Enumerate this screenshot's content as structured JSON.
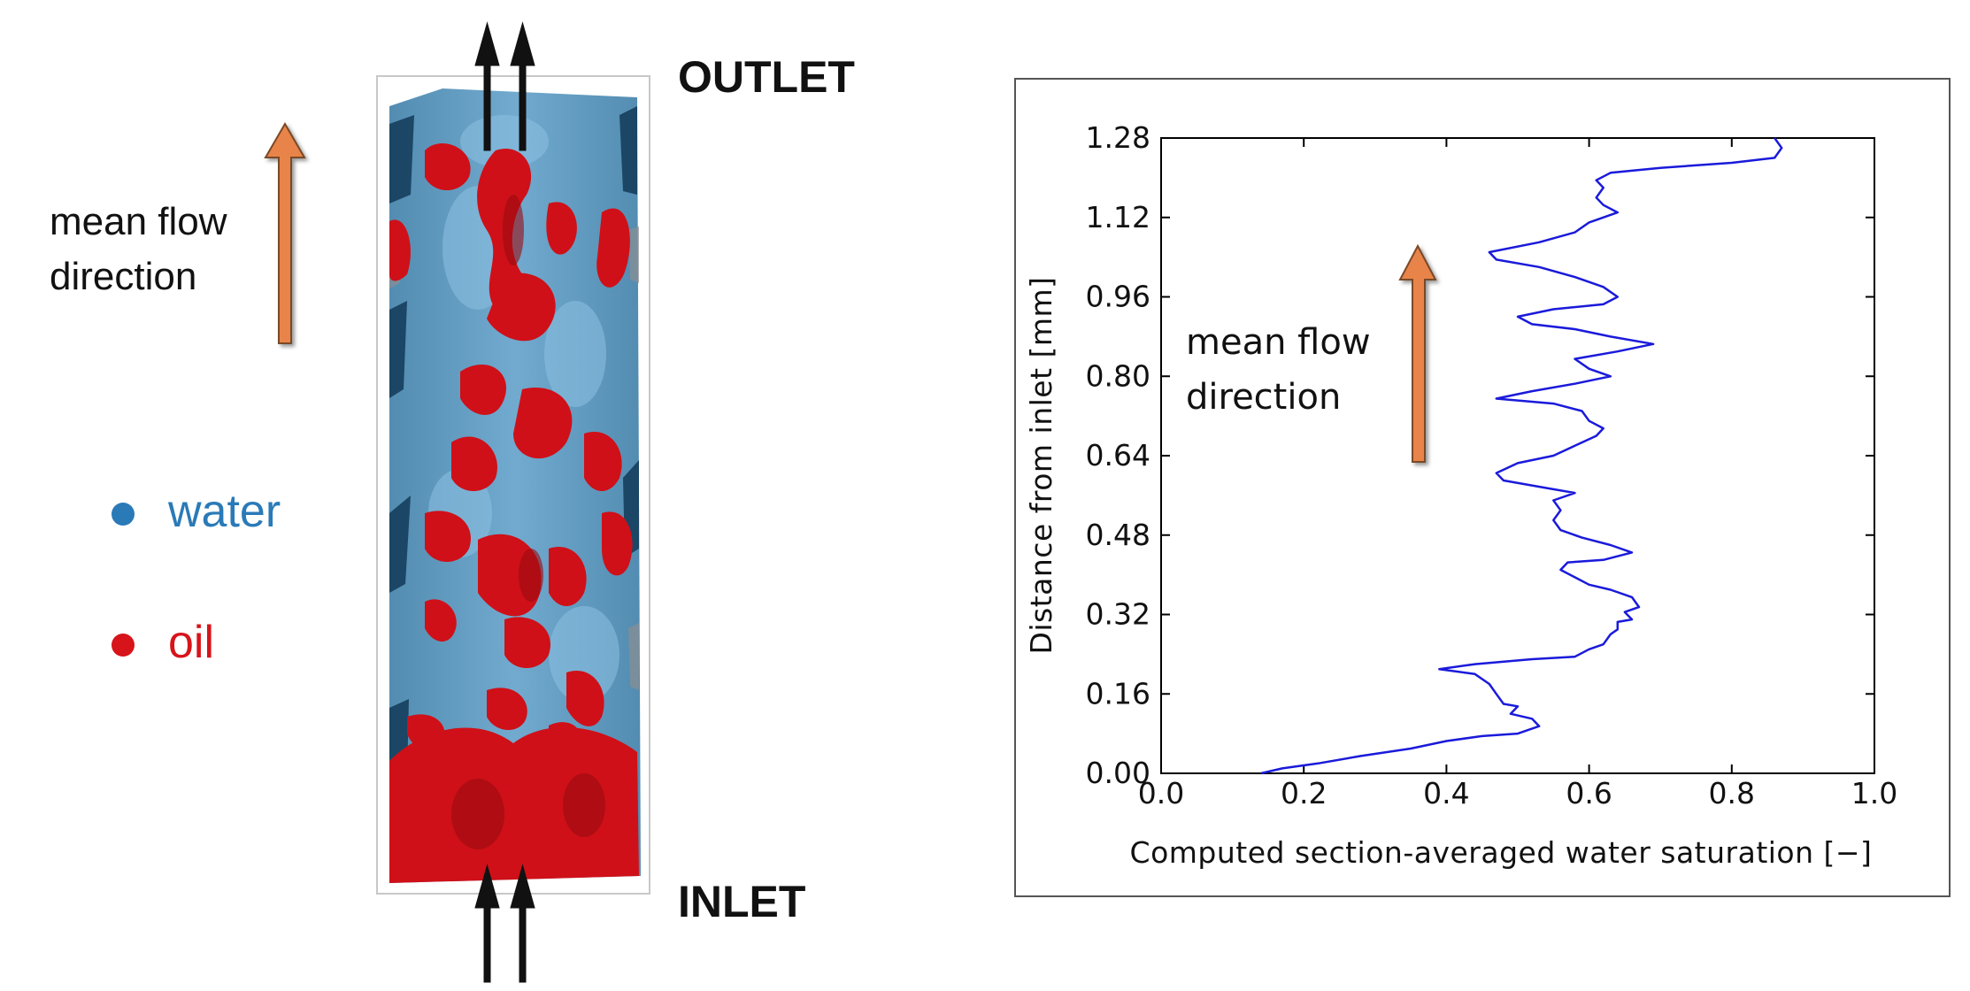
{
  "left_panel": {
    "flow_label_line1": "mean flow",
    "flow_label_line2": "direction",
    "outlet_label": "OUTLET",
    "inlet_label": "INLET",
    "legend": [
      {
        "label": "water",
        "color": "#2a7ab8"
      },
      {
        "label": "oil",
        "color": "#d7141a"
      }
    ],
    "colors": {
      "arrow": "#e8844a",
      "water": "#3f8fc4",
      "oil": "#cf1018"
    }
  },
  "chart_data": {
    "type": "line",
    "xlabel": "Computed  section-averaged  water  saturation  [−]",
    "ylabel": "Distance  from  inlet  [mm]",
    "xlim": [
      0.0,
      1.0
    ],
    "ylim": [
      0.0,
      1.28
    ],
    "xticks": [
      "0.0",
      "0.2",
      "0.4",
      "0.6",
      "0.8",
      "1.0"
    ],
    "yticks": [
      "0.00",
      "0.16",
      "0.32",
      "0.48",
      "0.64",
      "0.80",
      "0.96",
      "1.12",
      "1.28"
    ],
    "annotation_line1": "mean flow",
    "annotation_line2": "direction",
    "grid": false,
    "series": [
      {
        "color": "#1a1adb",
        "points": [
          [
            0.14,
            0.0
          ],
          [
            0.17,
            0.01
          ],
          [
            0.22,
            0.02
          ],
          [
            0.28,
            0.035
          ],
          [
            0.35,
            0.05
          ],
          [
            0.4,
            0.065
          ],
          [
            0.45,
            0.075
          ],
          [
            0.5,
            0.08
          ],
          [
            0.53,
            0.095
          ],
          [
            0.52,
            0.11
          ],
          [
            0.49,
            0.12
          ],
          [
            0.5,
            0.135
          ],
          [
            0.48,
            0.14
          ],
          [
            0.47,
            0.16
          ],
          [
            0.46,
            0.18
          ],
          [
            0.44,
            0.2
          ],
          [
            0.39,
            0.21
          ],
          [
            0.44,
            0.22
          ],
          [
            0.52,
            0.23
          ],
          [
            0.58,
            0.235
          ],
          [
            0.6,
            0.25
          ],
          [
            0.62,
            0.26
          ],
          [
            0.63,
            0.28
          ],
          [
            0.64,
            0.29
          ],
          [
            0.64,
            0.305
          ],
          [
            0.66,
            0.31
          ],
          [
            0.65,
            0.325
          ],
          [
            0.67,
            0.335
          ],
          [
            0.66,
            0.355
          ],
          [
            0.63,
            0.37
          ],
          [
            0.6,
            0.38
          ],
          [
            0.58,
            0.395
          ],
          [
            0.56,
            0.41
          ],
          [
            0.57,
            0.425
          ],
          [
            0.62,
            0.43
          ],
          [
            0.66,
            0.445
          ],
          [
            0.63,
            0.46
          ],
          [
            0.59,
            0.475
          ],
          [
            0.56,
            0.49
          ],
          [
            0.55,
            0.51
          ],
          [
            0.56,
            0.53
          ],
          [
            0.55,
            0.55
          ],
          [
            0.58,
            0.565
          ],
          [
            0.54,
            0.575
          ],
          [
            0.48,
            0.59
          ],
          [
            0.47,
            0.605
          ],
          [
            0.5,
            0.625
          ],
          [
            0.55,
            0.64
          ],
          [
            0.58,
            0.66
          ],
          [
            0.61,
            0.68
          ],
          [
            0.62,
            0.695
          ],
          [
            0.6,
            0.71
          ],
          [
            0.59,
            0.73
          ],
          [
            0.55,
            0.745
          ],
          [
            0.47,
            0.755
          ],
          [
            0.52,
            0.77
          ],
          [
            0.58,
            0.785
          ],
          [
            0.63,
            0.8
          ],
          [
            0.6,
            0.815
          ],
          [
            0.58,
            0.835
          ],
          [
            0.64,
            0.85
          ],
          [
            0.69,
            0.865
          ],
          [
            0.63,
            0.88
          ],
          [
            0.58,
            0.895
          ],
          [
            0.52,
            0.905
          ],
          [
            0.5,
            0.92
          ],
          [
            0.55,
            0.935
          ],
          [
            0.62,
            0.945
          ],
          [
            0.64,
            0.96
          ],
          [
            0.62,
            0.98
          ],
          [
            0.58,
            1.0
          ],
          [
            0.53,
            1.02
          ],
          [
            0.47,
            1.035
          ],
          [
            0.46,
            1.05
          ],
          [
            0.53,
            1.07
          ],
          [
            0.58,
            1.09
          ],
          [
            0.6,
            1.11
          ],
          [
            0.64,
            1.13
          ],
          [
            0.62,
            1.145
          ],
          [
            0.61,
            1.16
          ],
          [
            0.62,
            1.18
          ],
          [
            0.61,
            1.195
          ],
          [
            0.63,
            1.21
          ],
          [
            0.7,
            1.22
          ],
          [
            0.8,
            1.23
          ],
          [
            0.86,
            1.24
          ],
          [
            0.87,
            1.26
          ],
          [
            0.86,
            1.28
          ]
        ]
      }
    ]
  }
}
